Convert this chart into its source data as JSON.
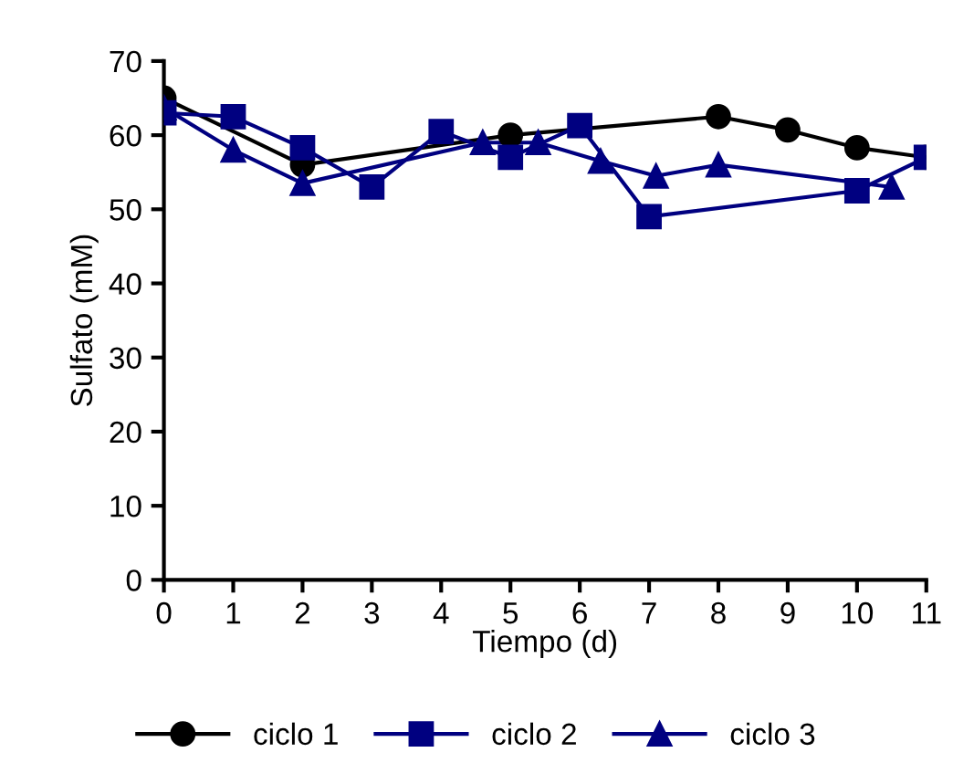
{
  "chart_data": {
    "type": "line",
    "xlabel": "Tiempo (d)",
    "ylabel": "Sulfato (mM)",
    "xlim": [
      0,
      11
    ],
    "ylim": [
      0,
      70
    ],
    "xticks": [
      0,
      1,
      2,
      3,
      4,
      5,
      6,
      7,
      8,
      9,
      10,
      11
    ],
    "yticks": [
      0,
      10,
      20,
      30,
      40,
      50,
      60,
      70
    ],
    "grid": false,
    "legend": "bottom",
    "line_style": "solid",
    "series": [
      {
        "name": "ciclo 1",
        "color": "#000000",
        "marker": "circle",
        "x": [
          0,
          2,
          5,
          8,
          9,
          10,
          11
        ],
        "values": [
          65,
          56,
          60,
          62.5,
          60.7,
          58.3,
          57
        ]
      },
      {
        "name": "ciclo 2",
        "color": "#000080",
        "marker": "square",
        "x": [
          0,
          1,
          2,
          3,
          4,
          5,
          6,
          7,
          10,
          11
        ],
        "values": [
          63,
          62.5,
          58.3,
          53,
          60.5,
          57,
          61.3,
          49,
          52.5,
          57
        ]
      },
      {
        "name": "ciclo 3",
        "color": "#000080",
        "marker": "triangle",
        "x": [
          0,
          1,
          2,
          4.6,
          5.4,
          6.3,
          7.1,
          8,
          10.5
        ],
        "values": [
          63.7,
          58,
          53.5,
          59,
          59,
          56.5,
          54.5,
          56,
          53
        ]
      }
    ]
  }
}
